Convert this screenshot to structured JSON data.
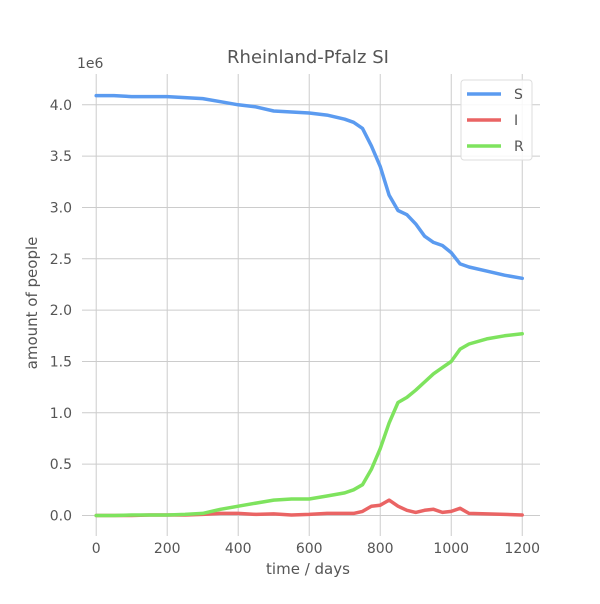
{
  "chart_data": {
    "type": "line",
    "title": "Rheinland-Pfalz SI",
    "xlabel": "time / days",
    "ylabel": "amount of people",
    "y_exponent_label": "1e6",
    "xlim": [
      -40,
      1250
    ],
    "ylim": [
      -0.2,
      4.3
    ],
    "x_ticks": [
      0,
      200,
      400,
      600,
      800,
      1000,
      1200
    ],
    "x_tick_labels": [
      "0",
      "200",
      "400",
      "600",
      "800",
      "1000",
      "1200"
    ],
    "y_ticks": [
      0.0,
      0.5,
      1.0,
      1.5,
      2.0,
      2.5,
      3.0,
      3.5,
      4.0
    ],
    "y_tick_labels": [
      "0.0",
      "0.5",
      "1.0",
      "1.5",
      "2.0",
      "2.5",
      "3.0",
      "3.5",
      "4.0"
    ],
    "grid": true,
    "legend_position": "top-right",
    "x": [
      0,
      50,
      100,
      150,
      200,
      250,
      300,
      350,
      400,
      450,
      500,
      550,
      600,
      650,
      700,
      725,
      750,
      775,
      800,
      825,
      850,
      875,
      900,
      925,
      950,
      975,
      1000,
      1025,
      1050,
      1100,
      1150,
      1200
    ],
    "series": [
      {
        "name": "S",
        "color": "#5b9bf0",
        "values": [
          4.09,
          4.09,
          4.08,
          4.08,
          4.08,
          4.07,
          4.06,
          4.03,
          4.0,
          3.98,
          3.94,
          3.93,
          3.92,
          3.9,
          3.86,
          3.83,
          3.77,
          3.6,
          3.4,
          3.12,
          2.97,
          2.93,
          2.84,
          2.72,
          2.66,
          2.63,
          2.56,
          2.45,
          2.42,
          2.38,
          2.34,
          2.31
        ]
      },
      {
        "name": "I",
        "color": "#ea6464",
        "values": [
          0.0,
          0.0,
          0.0,
          0.005,
          0.005,
          0.005,
          0.01,
          0.02,
          0.02,
          0.01,
          0.015,
          0.005,
          0.01,
          0.02,
          0.02,
          0.02,
          0.04,
          0.09,
          0.1,
          0.15,
          0.09,
          0.05,
          0.03,
          0.05,
          0.06,
          0.03,
          0.04,
          0.07,
          0.02,
          0.015,
          0.01,
          0.005
        ]
      },
      {
        "name": "R",
        "color": "#7ee35e",
        "values": [
          0.0,
          0.0,
          0.005,
          0.005,
          0.005,
          0.01,
          0.02,
          0.06,
          0.09,
          0.12,
          0.15,
          0.16,
          0.16,
          0.19,
          0.22,
          0.25,
          0.3,
          0.45,
          0.65,
          0.9,
          1.1,
          1.15,
          1.22,
          1.3,
          1.38,
          1.44,
          1.5,
          1.62,
          1.67,
          1.72,
          1.75,
          1.77
        ]
      }
    ]
  }
}
